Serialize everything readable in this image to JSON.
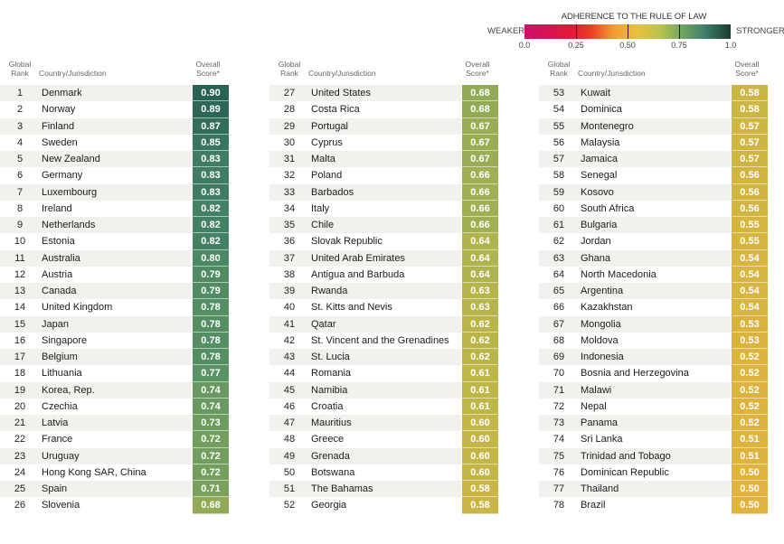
{
  "legend": {
    "title": "ADHERENCE TO THE RULE OF LAW",
    "weaker_label": "WEAKER",
    "stronger_label": "STRONGER",
    "ticks": [
      "0.0",
      "0.25",
      "0.50",
      "0.75",
      "1.0"
    ],
    "tick_values": [
      0,
      0.25,
      0.5,
      0.75,
      1.0
    ]
  },
  "headers": {
    "rank": "Global Rank",
    "rank_line1": "Global",
    "rank_line2": "Rank",
    "country": "Country/Jurisdiction",
    "score_line1": "Overall",
    "score_line2": "Score*"
  },
  "colors": {
    "score_scale": [
      "#2f6b57",
      "#3f7c63",
      "#5a9068",
      "#7ea35e",
      "#a5b350",
      "#c2b645",
      "#d4b440",
      "#e0b23e"
    ],
    "row_alt": "#f2f1ee"
  },
  "chart_data": {
    "type": "table",
    "title": "Adherence to the Rule of Law",
    "columns": [
      "Global Rank",
      "Country/Jurisdiction",
      "Overall Score*"
    ],
    "color_scale": {
      "label_low": "WEAKER",
      "label_high": "STRONGER",
      "range": [
        0,
        1.0
      ],
      "ticks": [
        0,
        0.25,
        0.5,
        0.75,
        1.0
      ]
    },
    "rows": [
      {
        "rank": 1,
        "country": "Denmark",
        "score": "0.90"
      },
      {
        "rank": 2,
        "country": "Norway",
        "score": "0.89"
      },
      {
        "rank": 3,
        "country": "Finland",
        "score": "0.87"
      },
      {
        "rank": 4,
        "country": "Sweden",
        "score": "0.85"
      },
      {
        "rank": 5,
        "country": "New Zealand",
        "score": "0.83"
      },
      {
        "rank": 6,
        "country": "Germany",
        "score": "0.83"
      },
      {
        "rank": 7,
        "country": "Luxembourg",
        "score": "0.83"
      },
      {
        "rank": 8,
        "country": "Ireland",
        "score": "0.82"
      },
      {
        "rank": 9,
        "country": "Netherlands",
        "score": "0.82"
      },
      {
        "rank": 10,
        "country": "Estonia",
        "score": "0.82"
      },
      {
        "rank": 11,
        "country": "Australia",
        "score": "0.80"
      },
      {
        "rank": 12,
        "country": "Austria",
        "score": "0.79"
      },
      {
        "rank": 13,
        "country": "Canada",
        "score": "0.79"
      },
      {
        "rank": 14,
        "country": "United Kingdom",
        "score": "0.78"
      },
      {
        "rank": 15,
        "country": "Japan",
        "score": "0.78"
      },
      {
        "rank": 16,
        "country": "Singapore",
        "score": "0.78"
      },
      {
        "rank": 17,
        "country": "Belgium",
        "score": "0.78"
      },
      {
        "rank": 18,
        "country": "Lithuania",
        "score": "0.77"
      },
      {
        "rank": 19,
        "country": "Korea, Rep.",
        "score": "0.74"
      },
      {
        "rank": 20,
        "country": "Czechia",
        "score": "0.74"
      },
      {
        "rank": 21,
        "country": "Latvia",
        "score": "0.73"
      },
      {
        "rank": 22,
        "country": "France",
        "score": "0.72"
      },
      {
        "rank": 23,
        "country": "Uruguay",
        "score": "0.72"
      },
      {
        "rank": 24,
        "country": "Hong Kong SAR, China",
        "score": "0.72"
      },
      {
        "rank": 25,
        "country": "Spain",
        "score": "0.71"
      },
      {
        "rank": 26,
        "country": "Slovenia",
        "score": "0.68"
      },
      {
        "rank": 27,
        "country": "United States",
        "score": "0.68"
      },
      {
        "rank": 28,
        "country": "Costa Rica",
        "score": "0.68"
      },
      {
        "rank": 29,
        "country": "Portugal",
        "score": "0.67"
      },
      {
        "rank": 30,
        "country": "Cyprus",
        "score": "0.67"
      },
      {
        "rank": 31,
        "country": "Malta",
        "score": "0.67"
      },
      {
        "rank": 32,
        "country": "Poland",
        "score": "0.66"
      },
      {
        "rank": 33,
        "country": "Barbados",
        "score": "0.66"
      },
      {
        "rank": 34,
        "country": "Italy",
        "score": "0.66"
      },
      {
        "rank": 35,
        "country": "Chile",
        "score": "0.66"
      },
      {
        "rank": 36,
        "country": "Slovak Republic",
        "score": "0.64"
      },
      {
        "rank": 37,
        "country": "United Arab Emirates",
        "score": "0.64"
      },
      {
        "rank": 38,
        "country": "Antigua and Barbuda",
        "score": "0.64"
      },
      {
        "rank": 39,
        "country": "Rwanda",
        "score": "0.63"
      },
      {
        "rank": 40,
        "country": "St. Kitts and Nevis",
        "score": "0.63"
      },
      {
        "rank": 41,
        "country": "Qatar",
        "score": "0.62"
      },
      {
        "rank": 42,
        "country": "St. Vincent and the Grenadines",
        "score": "0.62"
      },
      {
        "rank": 43,
        "country": "St. Lucia",
        "score": "0.62"
      },
      {
        "rank": 44,
        "country": "Romania",
        "score": "0.61"
      },
      {
        "rank": 45,
        "country": "Namibia",
        "score": "0.61"
      },
      {
        "rank": 46,
        "country": "Croatia",
        "score": "0.61"
      },
      {
        "rank": 47,
        "country": "Mauritius",
        "score": "0.60"
      },
      {
        "rank": 48,
        "country": "Greece",
        "score": "0.60"
      },
      {
        "rank": 49,
        "country": "Grenada",
        "score": "0.60"
      },
      {
        "rank": 50,
        "country": "Botswana",
        "score": "0.60"
      },
      {
        "rank": 51,
        "country": "The Bahamas",
        "score": "0.58"
      },
      {
        "rank": 52,
        "country": "Georgia",
        "score": "0.58"
      },
      {
        "rank": 53,
        "country": "Kuwait",
        "score": "0.58"
      },
      {
        "rank": 54,
        "country": "Dominica",
        "score": "0.58"
      },
      {
        "rank": 55,
        "country": "Montenegro",
        "score": "0.57"
      },
      {
        "rank": 56,
        "country": "Malaysia",
        "score": "0.57"
      },
      {
        "rank": 57,
        "country": "Jamaica",
        "score": "0.57"
      },
      {
        "rank": 58,
        "country": "Senegal",
        "score": "0.56"
      },
      {
        "rank": 59,
        "country": "Kosovo",
        "score": "0.56"
      },
      {
        "rank": 60,
        "country": "South Africa",
        "score": "0.56"
      },
      {
        "rank": 61,
        "country": "Bulgaria",
        "score": "0.55"
      },
      {
        "rank": 62,
        "country": "Jordan",
        "score": "0.55"
      },
      {
        "rank": 63,
        "country": "Ghana",
        "score": "0.54"
      },
      {
        "rank": 64,
        "country": "North Macedonia",
        "score": "0.54"
      },
      {
        "rank": 65,
        "country": "Argentina",
        "score": "0.54"
      },
      {
        "rank": 66,
        "country": "Kazakhstan",
        "score": "0.54"
      },
      {
        "rank": 67,
        "country": "Mongolia",
        "score": "0.53"
      },
      {
        "rank": 68,
        "country": "Moldova",
        "score": "0.53"
      },
      {
        "rank": 69,
        "country": "Indonesia",
        "score": "0.52"
      },
      {
        "rank": 70,
        "country": "Bosnia and Herzegovina",
        "score": "0.52"
      },
      {
        "rank": 71,
        "country": "Malawi",
        "score": "0.52"
      },
      {
        "rank": 72,
        "country": "Nepal",
        "score": "0.52"
      },
      {
        "rank": 73,
        "country": "Panama",
        "score": "0.52"
      },
      {
        "rank": 74,
        "country": "Sri Lanka",
        "score": "0.51"
      },
      {
        "rank": 75,
        "country": "Trinidad and Tobago",
        "score": "0.51"
      },
      {
        "rank": 76,
        "country": "Dominican Republic",
        "score": "0.50"
      },
      {
        "rank": 77,
        "country": "Thailand",
        "score": "0.50"
      },
      {
        "rank": 78,
        "country": "Brazil",
        "score": "0.50"
      }
    ]
  }
}
